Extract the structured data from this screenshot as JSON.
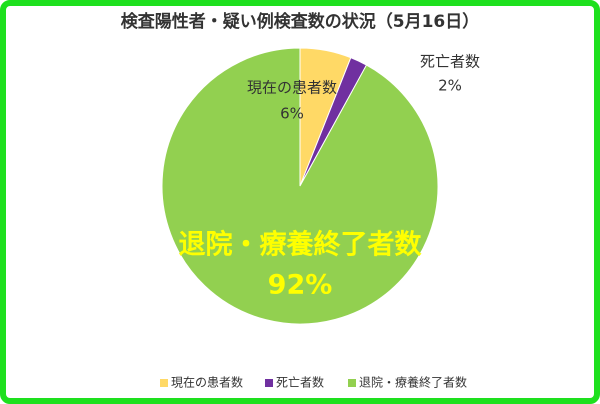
{
  "chart_data": {
    "type": "pie",
    "title": "検査陽性者・疑い例検査数の状況（5月16日）",
    "categories": [
      "現在の患者数",
      "死亡者数",
      "退院・療養終了者数"
    ],
    "values": [
      6,
      2,
      92
    ],
    "value_labels": [
      "6%",
      "2%",
      "92%"
    ],
    "colors": [
      "#ffd966",
      "#7030a0",
      "#92d050"
    ],
    "legend": "bottom"
  }
}
